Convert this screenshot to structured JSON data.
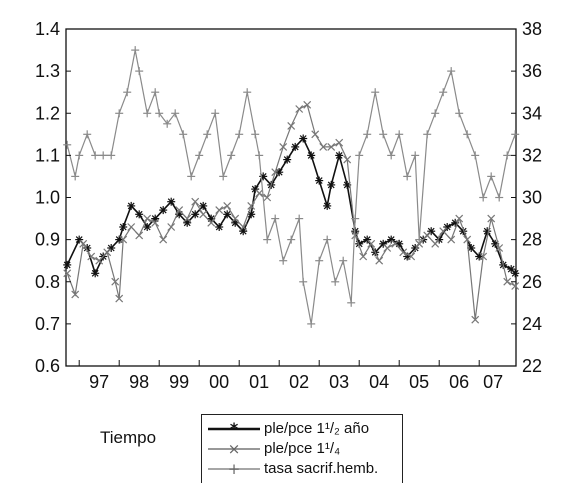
{
  "chart_data": {
    "type": "line",
    "title": "",
    "xlabel": "Tiempo",
    "ylabel_left": "",
    "ylabel_right": "",
    "x_tick_labels": [
      "97",
      "98",
      "99",
      "00",
      "01",
      "02",
      "03",
      "04",
      "05",
      "06",
      "07"
    ],
    "y_left_ticks": [
      "0.6",
      "0.7",
      "0.8",
      "0.9",
      "1.0",
      "1.1",
      "1.2",
      "1.3",
      "1.4"
    ],
    "y_right_ticks": [
      "22",
      "24",
      "26",
      "28",
      "30",
      "32",
      "34",
      "36",
      "38"
    ],
    "ylim_left": [
      0.6,
      1.4
    ],
    "ylim_right": [
      22,
      38
    ],
    "xlim": [
      1996.67,
      2007.92
    ],
    "grid": false,
    "legend_position": "bottom-center",
    "series": [
      {
        "name": "ple/pce 1¹/₂ año",
        "axis": "left",
        "color": "#111111",
        "marker": "asterisk",
        "points": [
          [
            1996.7,
            0.84
          ],
          [
            1997.0,
            0.9
          ],
          [
            1997.2,
            0.88
          ],
          [
            1997.4,
            0.82
          ],
          [
            1997.6,
            0.86
          ],
          [
            1997.8,
            0.88
          ],
          [
            1998.0,
            0.9
          ],
          [
            1998.1,
            0.93
          ],
          [
            1998.3,
            0.98
          ],
          [
            1998.5,
            0.96
          ],
          [
            1998.7,
            0.93
          ],
          [
            1998.9,
            0.95
          ],
          [
            1999.1,
            0.97
          ],
          [
            1999.3,
            0.99
          ],
          [
            1999.5,
            0.96
          ],
          [
            1999.7,
            0.94
          ],
          [
            1999.9,
            0.96
          ],
          [
            2000.1,
            0.98
          ],
          [
            2000.3,
            0.95
          ],
          [
            2000.5,
            0.93
          ],
          [
            2000.7,
            0.96
          ],
          [
            2000.9,
            0.94
          ],
          [
            2001.1,
            0.92
          ],
          [
            2001.3,
            0.96
          ],
          [
            2001.4,
            1.02
          ],
          [
            2001.6,
            1.05
          ],
          [
            2001.8,
            1.03
          ],
          [
            2002.0,
            1.06
          ],
          [
            2002.2,
            1.09
          ],
          [
            2002.4,
            1.12
          ],
          [
            2002.6,
            1.14
          ],
          [
            2002.8,
            1.1
          ],
          [
            2003.0,
            1.04
          ],
          [
            2003.2,
            0.98
          ],
          [
            2003.3,
            1.03
          ],
          [
            2003.5,
            1.1
          ],
          [
            2003.7,
            1.03
          ],
          [
            2003.9,
            0.92
          ],
          [
            2004.0,
            0.89
          ],
          [
            2004.2,
            0.9
          ],
          [
            2004.4,
            0.87
          ],
          [
            2004.6,
            0.89
          ],
          [
            2004.8,
            0.9
          ],
          [
            2005.0,
            0.89
          ],
          [
            2005.2,
            0.86
          ],
          [
            2005.4,
            0.88
          ],
          [
            2005.6,
            0.9
          ],
          [
            2005.8,
            0.92
          ],
          [
            2006.0,
            0.9
          ],
          [
            2006.2,
            0.93
          ],
          [
            2006.4,
            0.94
          ],
          [
            2006.6,
            0.92
          ],
          [
            2006.8,
            0.88
          ],
          [
            2007.0,
            0.86
          ],
          [
            2007.2,
            0.92
          ],
          [
            2007.4,
            0.89
          ],
          [
            2007.6,
            0.84
          ],
          [
            2007.8,
            0.83
          ],
          [
            2007.9,
            0.82
          ]
        ]
      },
      {
        "name": "ple/pce 1¹/₄",
        "axis": "left",
        "color": "#777777",
        "marker": "x",
        "points": [
          [
            1996.7,
            0.82
          ],
          [
            1996.9,
            0.77
          ],
          [
            1997.1,
            0.89
          ],
          [
            1997.3,
            0.86
          ],
          [
            1997.5,
            0.85
          ],
          [
            1997.7,
            0.87
          ],
          [
            1997.9,
            0.8
          ],
          [
            1998.0,
            0.76
          ],
          [
            1998.1,
            0.9
          ],
          [
            1998.3,
            0.93
          ],
          [
            1998.5,
            0.91
          ],
          [
            1998.7,
            0.95
          ],
          [
            1998.9,
            0.94
          ],
          [
            1999.1,
            0.9
          ],
          [
            1999.3,
            0.93
          ],
          [
            1999.5,
            0.97
          ],
          [
            1999.7,
            0.95
          ],
          [
            1999.9,
            0.99
          ],
          [
            2000.1,
            0.96
          ],
          [
            2000.3,
            0.94
          ],
          [
            2000.5,
            0.97
          ],
          [
            2000.7,
            0.98
          ],
          [
            2000.9,
            0.95
          ],
          [
            2001.1,
            0.93
          ],
          [
            2001.3,
            0.98
          ],
          [
            2001.5,
            1.01
          ],
          [
            2001.7,
            1.0
          ],
          [
            2001.9,
            1.06
          ],
          [
            2002.1,
            1.12
          ],
          [
            2002.3,
            1.17
          ],
          [
            2002.5,
            1.21
          ],
          [
            2002.7,
            1.22
          ],
          [
            2002.9,
            1.15
          ],
          [
            2003.1,
            1.12
          ],
          [
            2003.3,
            1.12
          ],
          [
            2003.5,
            1.13
          ],
          [
            2003.7,
            1.09
          ],
          [
            2003.9,
            0.91
          ],
          [
            2004.1,
            0.86
          ],
          [
            2004.3,
            0.89
          ],
          [
            2004.5,
            0.85
          ],
          [
            2004.7,
            0.88
          ],
          [
            2004.9,
            0.89
          ],
          [
            2005.1,
            0.87
          ],
          [
            2005.3,
            0.86
          ],
          [
            2005.5,
            0.89
          ],
          [
            2005.7,
            0.91
          ],
          [
            2005.9,
            0.89
          ],
          [
            2006.1,
            0.92
          ],
          [
            2006.3,
            0.9
          ],
          [
            2006.5,
            0.95
          ],
          [
            2006.7,
            0.9
          ],
          [
            2006.9,
            0.71
          ],
          [
            2007.1,
            0.86
          ],
          [
            2007.3,
            0.95
          ],
          [
            2007.5,
            0.88
          ],
          [
            2007.7,
            0.8
          ],
          [
            2007.9,
            0.79
          ]
        ]
      },
      {
        "name": "tasa sacrif.hemb.",
        "axis": "right",
        "color": "#8a8a8a",
        "marker": "plus",
        "points": [
          [
            1996.7,
            32.5
          ],
          [
            1996.9,
            31.0
          ],
          [
            1997.0,
            32.0
          ],
          [
            1997.2,
            33.0
          ],
          [
            1997.4,
            32.0
          ],
          [
            1997.6,
            32.0
          ],
          [
            1997.8,
            32.0
          ],
          [
            1998.0,
            34.0
          ],
          [
            1998.2,
            35.0
          ],
          [
            1998.4,
            37.0
          ],
          [
            1998.5,
            36.0
          ],
          [
            1998.7,
            34.0
          ],
          [
            1998.9,
            35.0
          ],
          [
            1999.0,
            34.0
          ],
          [
            1999.2,
            33.5
          ],
          [
            1999.4,
            34.0
          ],
          [
            1999.6,
            33.0
          ],
          [
            1999.8,
            31.0
          ],
          [
            2000.0,
            32.0
          ],
          [
            2000.2,
            33.0
          ],
          [
            2000.4,
            34.0
          ],
          [
            2000.6,
            31.0
          ],
          [
            2000.8,
            32.0
          ],
          [
            2001.0,
            33.0
          ],
          [
            2001.2,
            35.0
          ],
          [
            2001.4,
            33.0
          ],
          [
            2001.5,
            32.0
          ],
          [
            2001.7,
            28.0
          ],
          [
            2001.9,
            29.0
          ],
          [
            2002.1,
            27.0
          ],
          [
            2002.3,
            28.0
          ],
          [
            2002.5,
            29.0
          ],
          [
            2002.6,
            26.0
          ],
          [
            2002.8,
            24.0
          ],
          [
            2003.0,
            27.0
          ],
          [
            2003.2,
            28.0
          ],
          [
            2003.4,
            26.0
          ],
          [
            2003.6,
            27.0
          ],
          [
            2003.8,
            25.0
          ],
          [
            2003.9,
            29.0
          ],
          [
            2004.0,
            32.0
          ],
          [
            2004.2,
            33.0
          ],
          [
            2004.4,
            35.0
          ],
          [
            2004.6,
            33.0
          ],
          [
            2004.8,
            32.0
          ],
          [
            2005.0,
            33.0
          ],
          [
            2005.2,
            31.0
          ],
          [
            2005.4,
            32.0
          ],
          [
            2005.5,
            28.0
          ],
          [
            2005.7,
            33.0
          ],
          [
            2005.9,
            34.0
          ],
          [
            2006.1,
            35.0
          ],
          [
            2006.3,
            36.0
          ],
          [
            2006.5,
            34.0
          ],
          [
            2006.7,
            33.0
          ],
          [
            2006.9,
            32.0
          ],
          [
            2007.1,
            30.0
          ],
          [
            2007.3,
            31.0
          ],
          [
            2007.5,
            30.0
          ],
          [
            2007.7,
            32.0
          ],
          [
            2007.9,
            33.0
          ]
        ]
      }
    ]
  },
  "legend": {
    "items": [
      {
        "text": "ple/pce 1¹/₂ año",
        "color": "#111111",
        "marker": "*"
      },
      {
        "text": "ple/pce 1¹/₄",
        "color": "#777777",
        "marker": "×"
      },
      {
        "text": "tasa sacrif.hemb.",
        "color": "#8a8a8a",
        "marker": "+"
      }
    ]
  }
}
